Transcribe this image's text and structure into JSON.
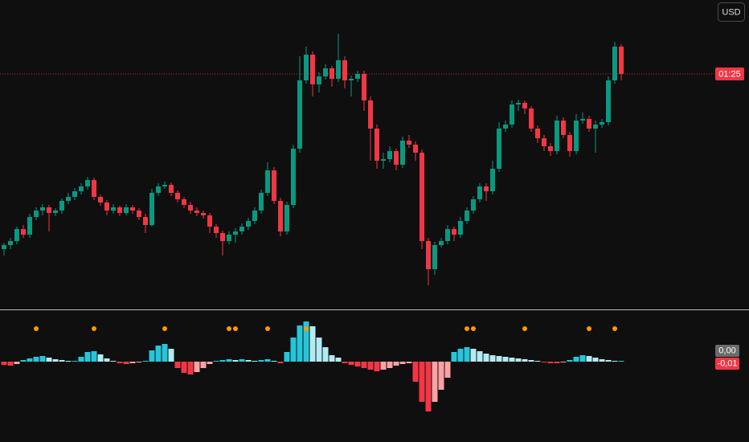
{
  "ui": {
    "currency": "USD"
  },
  "chart_data": [
    {
      "type": "candlestick",
      "up_color": "#089981",
      "down_color": "#f23645",
      "ylim": [
        15,
        400
      ],
      "last_label": "01:25",
      "open": [
        90,
        95,
        100,
        115,
        108,
        130,
        138,
        142,
        135,
        138,
        150,
        155,
        162,
        168,
        176,
        155,
        148,
        138,
        142,
        135,
        142,
        138,
        130,
        120,
        160,
        168,
        170,
        160,
        152,
        145,
        138,
        135,
        132,
        118,
        110,
        100,
        108,
        112,
        118,
        125,
        138,
        160,
        188,
        150,
        112,
        145,
        215,
        300,
        332,
        295,
        305,
        315,
        302,
        325,
        300,
        302,
        308,
        275,
        240,
        200,
        202,
        212,
        195,
        225,
        220,
        210,
        100,
        65,
        95,
        100,
        115,
        108,
        125,
        138,
        152,
        168,
        162,
        190,
        240,
        245,
        270,
        272,
        265,
        240,
        228,
        218,
        212,
        250,
        232,
        212,
        250,
        252,
        240,
        245,
        248,
        300,
        342
      ],
      "high": [
        98,
        104,
        118,
        120,
        134,
        142,
        146,
        145,
        141,
        153,
        160,
        166,
        172,
        180,
        179,
        158,
        151,
        146,
        144,
        146,
        145,
        141,
        134,
        165,
        172,
        174,
        173,
        163,
        155,
        149,
        142,
        138,
        135,
        121,
        113,
        112,
        116,
        122,
        129,
        142,
        164,
        198,
        192,
        154,
        149,
        220,
        330,
        342,
        336,
        310,
        320,
        318,
        358,
        330,
        306,
        312,
        312,
        280,
        245,
        210,
        218,
        215,
        230,
        232,
        224,
        214,
        104,
        99,
        104,
        120,
        118,
        130,
        142,
        156,
        172,
        172,
        200,
        248,
        250,
        275,
        276,
        275,
        268,
        244,
        232,
        222,
        256,
        254,
        236,
        258,
        260,
        256,
        250,
        252,
        305,
        348,
        345
      ],
      "low": [
        82,
        90,
        96,
        104,
        104,
        126,
        132,
        112,
        131,
        134,
        146,
        151,
        158,
        164,
        151,
        144,
        132,
        134,
        131,
        132,
        134,
        126,
        110,
        118,
        156,
        165,
        156,
        148,
        141,
        134,
        131,
        128,
        110,
        104,
        82,
        96,
        98,
        108,
        114,
        121,
        134,
        156,
        146,
        106,
        108,
        141,
        210,
        296,
        280,
        285,
        301,
        292,
        298,
        290,
        280,
        298,
        262,
        200,
        190,
        190,
        198,
        188,
        191,
        216,
        200,
        90,
        45,
        58,
        92,
        96,
        100,
        104,
        121,
        134,
        148,
        150,
        158,
        186,
        236,
        241,
        262,
        258,
        236,
        222,
        212,
        206,
        208,
        228,
        205,
        208,
        246,
        236,
        210,
        241,
        244,
        296,
        300
      ],
      "close": [
        95,
        100,
        115,
        108,
        130,
        138,
        142,
        135,
        138,
        150,
        155,
        162,
        168,
        176,
        155,
        148,
        138,
        142,
        135,
        142,
        138,
        130,
        120,
        160,
        168,
        170,
        160,
        152,
        145,
        138,
        135,
        132,
        118,
        110,
        100,
        108,
        112,
        118,
        125,
        138,
        160,
        188,
        150,
        112,
        145,
        215,
        300,
        332,
        295,
        305,
        315,
        302,
        325,
        300,
        302,
        308,
        275,
        240,
        200,
        202,
        212,
        195,
        225,
        220,
        210,
        100,
        65,
        95,
        100,
        115,
        108,
        125,
        138,
        152,
        168,
        162,
        190,
        240,
        245,
        270,
        272,
        265,
        240,
        228,
        218,
        212,
        250,
        232,
        212,
        250,
        252,
        240,
        245,
        248,
        300,
        342,
        308
      ]
    },
    {
      "type": "bar",
      "colors": {
        "up_rising": "#26c6da",
        "up_falling": "#b2ebf2",
        "down_falling": "#f23645",
        "down_rising": "#faa1a4"
      },
      "ylim": [
        -0.08,
        0.06
      ],
      "values": [
        -0.004,
        -0.005,
        -0.003,
        0.002,
        0.004,
        0.006,
        0.007,
        0.005,
        0.003,
        0.002,
        0.001,
        0.001,
        0.006,
        0.012,
        0.013,
        0.009,
        0.004,
        0.001,
        -0.002,
        -0.003,
        -0.002,
        -0.001,
        0.001,
        0.014,
        0.02,
        0.022,
        0.016,
        -0.008,
        -0.014,
        -0.016,
        -0.013,
        -0.008,
        -0.003,
        0.001,
        0.002,
        0.003,
        0.002,
        0.003,
        0.002,
        0.001,
        0.002,
        0.003,
        0.001,
        -0.002,
        0.012,
        0.03,
        0.045,
        0.05,
        0.044,
        0.03,
        0.018,
        0.008,
        0.005,
        -0.002,
        -0.004,
        -0.006,
        -0.008,
        -0.01,
        -0.012,
        -0.01,
        -0.008,
        -0.005,
        -0.003,
        -0.002,
        -0.025,
        -0.05,
        -0.062,
        -0.05,
        -0.035,
        -0.02,
        0.012,
        0.016,
        0.018,
        0.016,
        0.013,
        0.01,
        0.008,
        0.007,
        0.006,
        0.005,
        0.004,
        0.003,
        0.002,
        0.001,
        -0.001,
        -0.002,
        -0.002,
        -0.001,
        0.002,
        0.006,
        0.008,
        0.007,
        0.005,
        0.003,
        0.002,
        0.001,
        0.001
      ],
      "signal_bars": [
        5,
        14,
        25,
        35,
        36,
        41,
        47,
        72,
        73,
        81,
        91,
        95
      ],
      "signal_color": "#ff9800",
      "last_labels": [
        "0,00",
        "-0,01"
      ]
    }
  ]
}
